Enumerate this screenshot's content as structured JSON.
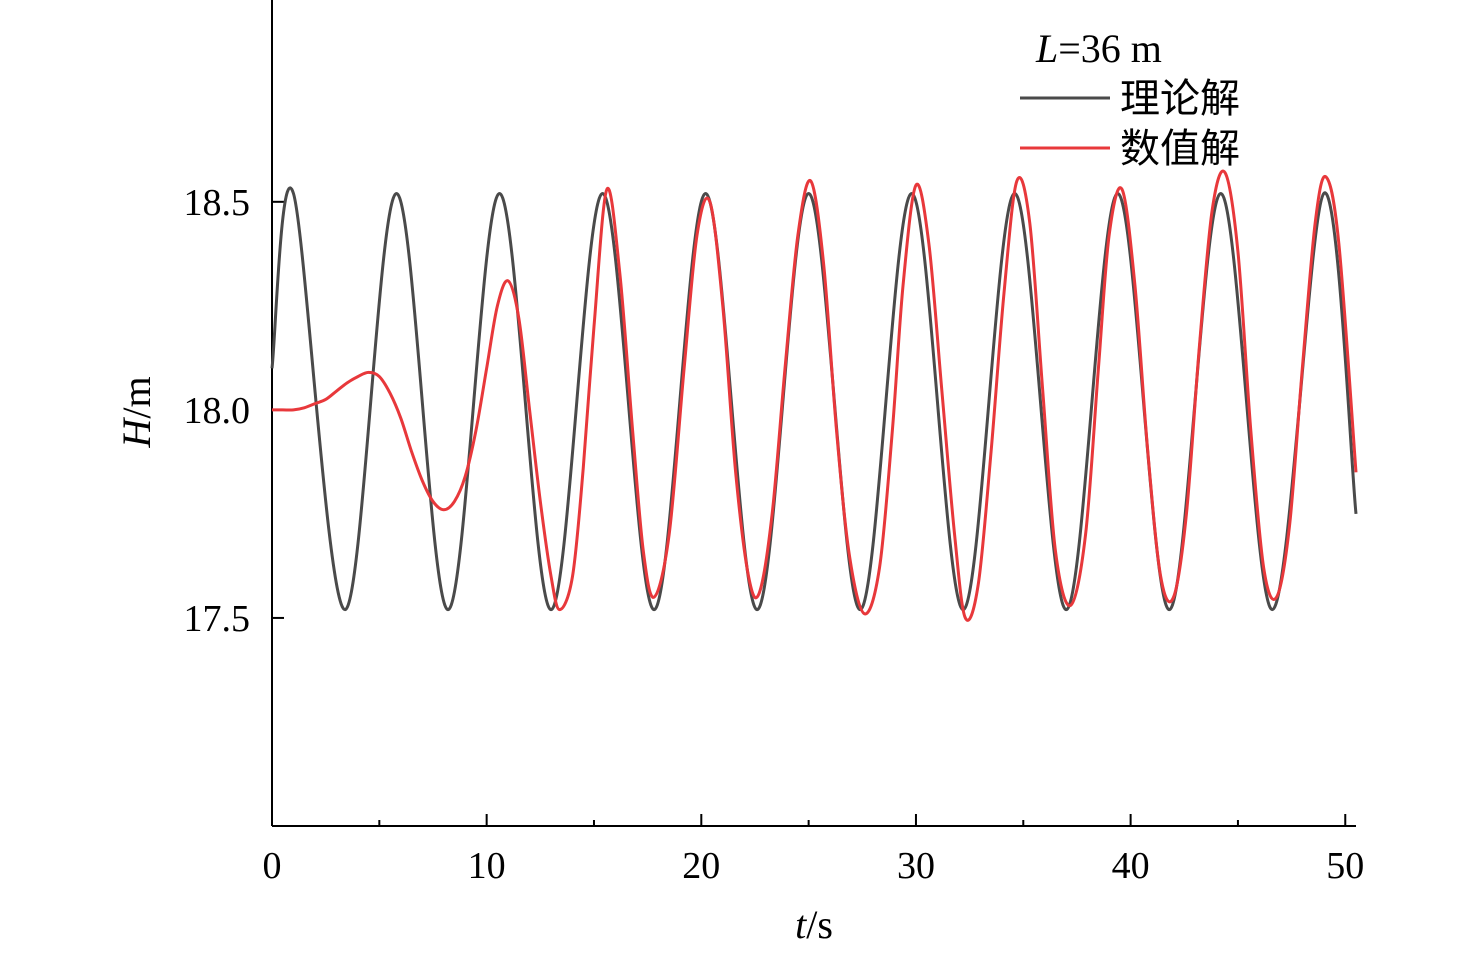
{
  "chart_data": {
    "type": "line",
    "xlabel": {
      "italic": "t",
      "rest": "/s"
    },
    "ylabel": {
      "italic": "H",
      "rest": "/m"
    },
    "xlim": [
      0,
      50.5
    ],
    "ylim": [
      17.0,
      18.985
    ],
    "x_ticks": [
      0,
      10,
      20,
      30,
      40,
      50
    ],
    "x_tick_labels": [
      "0",
      "10",
      "20",
      "30",
      "40",
      "50"
    ],
    "x_minor_ticks": [
      5,
      15,
      25,
      35,
      45
    ],
    "y_ticks": [
      17.5,
      18.0,
      18.5
    ],
    "y_tick_labels": [
      "17.5",
      "18.0",
      "18.5"
    ],
    "annotation": {
      "italic": "L",
      "rest": "=36 m"
    },
    "legend_position": "top-right",
    "grid": false,
    "series": [
      {
        "name": "理论解",
        "color": "#4a4a4a",
        "x": [
          0,
          1.0,
          3.4,
          5.8,
          8.2,
          10.6,
          13.0,
          15.4,
          17.8,
          20.2,
          22.6,
          25.0,
          27.4,
          29.8,
          32.2,
          34.6,
          37.0,
          39.4,
          41.8,
          44.2,
          46.6,
          49.0,
          50.5
        ],
        "y": [
          18.1,
          18.52,
          17.52,
          18.52,
          17.52,
          18.52,
          17.52,
          18.52,
          17.52,
          18.52,
          17.52,
          18.52,
          17.52,
          18.52,
          17.52,
          18.52,
          17.52,
          18.52,
          17.52,
          18.52,
          17.52,
          18.52,
          17.75
        ]
      },
      {
        "name": "数值解",
        "color": "#e8383b",
        "x": [
          0,
          0.5,
          1.0,
          1.5,
          2.0,
          2.5,
          3.0,
          3.5,
          4.0,
          4.5,
          5.0,
          5.5,
          6.0,
          6.5,
          7.0,
          7.5,
          8.0,
          8.5,
          9.0,
          9.5,
          10.0,
          10.5,
          11.0,
          11.5,
          12.0,
          12.5,
          13.0,
          13.4,
          14.0,
          14.5,
          15.0,
          15.6,
          16.2,
          16.8,
          17.3,
          17.8,
          18.5,
          19.2,
          19.8,
          20.4,
          21.0,
          21.6,
          22.2,
          22.7,
          23.3,
          23.9,
          24.5,
          25.1,
          25.7,
          26.3,
          26.9,
          27.6,
          28.3,
          28.9,
          29.4,
          30.0,
          30.6,
          31.2,
          31.8,
          32.3,
          32.9,
          33.5,
          34.1,
          34.7,
          35.3,
          35.9,
          36.5,
          37.2,
          37.9,
          38.5,
          39.0,
          39.6,
          40.2,
          40.8,
          41.4,
          42.0,
          42.6,
          43.2,
          43.8,
          44.4,
          45.0,
          45.6,
          46.2,
          46.8,
          47.4,
          48.0,
          48.6,
          49.1,
          49.7,
          50.5
        ],
        "y": [
          18.0,
          18.0,
          18.0,
          18.005,
          18.015,
          18.025,
          18.045,
          18.065,
          18.08,
          18.09,
          18.08,
          18.04,
          17.98,
          17.9,
          17.83,
          17.78,
          17.76,
          17.78,
          17.84,
          17.95,
          18.1,
          18.25,
          18.31,
          18.22,
          18.0,
          17.78,
          17.6,
          17.52,
          17.6,
          17.86,
          18.2,
          18.53,
          18.33,
          17.95,
          17.66,
          17.55,
          17.7,
          18.1,
          18.42,
          18.5,
          18.25,
          17.85,
          17.6,
          17.56,
          17.75,
          18.1,
          18.42,
          18.55,
          18.35,
          17.95,
          17.65,
          17.51,
          17.62,
          17.95,
          18.3,
          18.54,
          18.4,
          18.05,
          17.7,
          17.5,
          17.58,
          17.9,
          18.28,
          18.55,
          18.45,
          18.05,
          17.66,
          17.53,
          17.7,
          18.1,
          18.42,
          18.53,
          18.3,
          17.9,
          17.6,
          17.55,
          17.75,
          18.15,
          18.48,
          18.57,
          18.38,
          17.95,
          17.62,
          17.55,
          17.72,
          18.1,
          18.45,
          18.56,
          18.4,
          17.85
        ]
      }
    ]
  }
}
